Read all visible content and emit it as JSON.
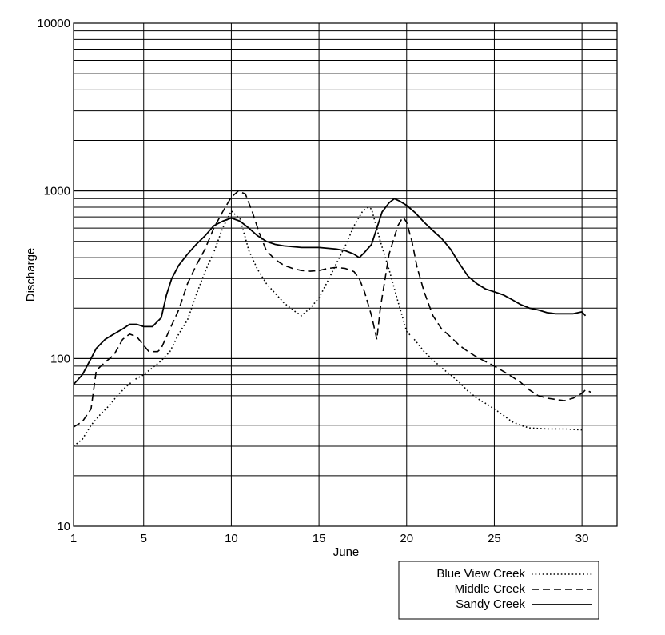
{
  "chart_data": {
    "type": "line",
    "title": "",
    "xlabel": "June",
    "ylabel": "Discharge",
    "xlim": [
      1,
      32
    ],
    "ylim": [
      10,
      10000
    ],
    "y_scale": "log",
    "grid": true,
    "x_ticks": [
      1,
      5,
      10,
      15,
      20,
      25,
      30
    ],
    "y_ticks": [
      10,
      100,
      1000,
      10000
    ],
    "legend_position": "bottom-right",
    "series": [
      {
        "name": "Blue View Creek",
        "style": "dotted",
        "points": [
          [
            1,
            30
          ],
          [
            1.5,
            33
          ],
          [
            2,
            40
          ],
          [
            2.5,
            46
          ],
          [
            3,
            52
          ],
          [
            3.5,
            60
          ],
          [
            4,
            68
          ],
          [
            4.5,
            75
          ],
          [
            5,
            80
          ],
          [
            5.5,
            88
          ],
          [
            6,
            97
          ],
          [
            6.5,
            110
          ],
          [
            7,
            140
          ],
          [
            7.5,
            170
          ],
          [
            8,
            240
          ],
          [
            8.5,
            330
          ],
          [
            9,
            430
          ],
          [
            9.5,
            600
          ],
          [
            10,
            760
          ],
          [
            10.5,
            680
          ],
          [
            11,
            440
          ],
          [
            11.5,
            340
          ],
          [
            12,
            280
          ],
          [
            12.5,
            245
          ],
          [
            13,
            215
          ],
          [
            13.5,
            195
          ],
          [
            14,
            180
          ],
          [
            14.5,
            200
          ],
          [
            15,
            230
          ],
          [
            15.5,
            290
          ],
          [
            16,
            370
          ],
          [
            16.5,
            470
          ],
          [
            17,
            620
          ],
          [
            17.5,
            760
          ],
          [
            17.8,
            800
          ],
          [
            18,
            780
          ],
          [
            18.5,
            500
          ],
          [
            19,
            340
          ],
          [
            19.5,
            220
          ],
          [
            20,
            145
          ],
          [
            20.5,
            128
          ],
          [
            21,
            110
          ],
          [
            21.5,
            98
          ],
          [
            22,
            88
          ],
          [
            22.5,
            80
          ],
          [
            23,
            72
          ],
          [
            23.5,
            64
          ],
          [
            24,
            58
          ],
          [
            24.5,
            54
          ],
          [
            25,
            50
          ],
          [
            25.5,
            46
          ],
          [
            26,
            42
          ],
          [
            26.5,
            40
          ],
          [
            27,
            38.5
          ],
          [
            28,
            38
          ],
          [
            29,
            38
          ],
          [
            30,
            37.5
          ]
        ]
      },
      {
        "name": "Middle Creek",
        "style": "dashed",
        "points": [
          [
            1,
            39
          ],
          [
            1.5,
            42
          ],
          [
            2,
            50
          ],
          [
            2.3,
            85
          ],
          [
            2.8,
            95
          ],
          [
            3.3,
            105
          ],
          [
            3.8,
            130
          ],
          [
            4.2,
            140
          ],
          [
            4.6,
            135
          ],
          [
            5,
            120
          ],
          [
            5.3,
            110
          ],
          [
            5.8,
            110
          ],
          [
            6,
            115
          ],
          [
            6.5,
            150
          ],
          [
            7,
            195
          ],
          [
            7.5,
            280
          ],
          [
            8,
            360
          ],
          [
            8.5,
            450
          ],
          [
            9,
            600
          ],
          [
            9.5,
            750
          ],
          [
            10,
            920
          ],
          [
            10.4,
            1000
          ],
          [
            10.8,
            960
          ],
          [
            11.2,
            750
          ],
          [
            11.6,
            560
          ],
          [
            12,
            440
          ],
          [
            12.5,
            390
          ],
          [
            13,
            360
          ],
          [
            13.5,
            345
          ],
          [
            14,
            335
          ],
          [
            14.5,
            332
          ],
          [
            15,
            335
          ],
          [
            15.5,
            345
          ],
          [
            16,
            350
          ],
          [
            16.5,
            345
          ],
          [
            17,
            330
          ],
          [
            17.3,
            300
          ],
          [
            17.6,
            250
          ],
          [
            18,
            180
          ],
          [
            18.3,
            130
          ],
          [
            18.5,
            200
          ],
          [
            19,
            420
          ],
          [
            19.5,
            620
          ],
          [
            19.8,
            700
          ],
          [
            20,
            650
          ],
          [
            20.3,
            500
          ],
          [
            20.6,
            350
          ],
          [
            21,
            250
          ],
          [
            21.5,
            180
          ],
          [
            22,
            150
          ],
          [
            22.5,
            135
          ],
          [
            23,
            120
          ],
          [
            23.5,
            110
          ],
          [
            24,
            102
          ],
          [
            24.5,
            96
          ],
          [
            25,
            90
          ],
          [
            25.5,
            84
          ],
          [
            26,
            78
          ],
          [
            26.5,
            72
          ],
          [
            27,
            65
          ],
          [
            27.5,
            60
          ],
          [
            28,
            58
          ],
          [
            28.5,
            57
          ],
          [
            29,
            56
          ],
          [
            29.5,
            58
          ],
          [
            30,
            62
          ],
          [
            30.2,
            65
          ],
          [
            30.5,
            63
          ]
        ]
      },
      {
        "name": "Sandy Creek",
        "style": "solid",
        "points": [
          [
            1,
            70
          ],
          [
            1.5,
            80
          ],
          [
            2,
            100
          ],
          [
            2.3,
            115
          ],
          [
            2.8,
            130
          ],
          [
            3.3,
            140
          ],
          [
            3.8,
            150
          ],
          [
            4.2,
            160
          ],
          [
            4.6,
            160
          ],
          [
            5,
            155
          ],
          [
            5.5,
            155
          ],
          [
            6,
            175
          ],
          [
            6.3,
            240
          ],
          [
            6.6,
            300
          ],
          [
            7,
            360
          ],
          [
            7.5,
            420
          ],
          [
            8,
            480
          ],
          [
            8.5,
            540
          ],
          [
            9,
            620
          ],
          [
            9.5,
            660
          ],
          [
            10,
            690
          ],
          [
            10.5,
            660
          ],
          [
            11,
            600
          ],
          [
            11.5,
            540
          ],
          [
            12,
            500
          ],
          [
            12.5,
            480
          ],
          [
            13,
            470
          ],
          [
            13.5,
            465
          ],
          [
            14,
            460
          ],
          [
            14.5,
            460
          ],
          [
            15,
            460
          ],
          [
            15.5,
            455
          ],
          [
            16,
            450
          ],
          [
            16.5,
            440
          ],
          [
            17,
            420
          ],
          [
            17.3,
            400
          ],
          [
            17.6,
            430
          ],
          [
            18,
            480
          ],
          [
            18.3,
            600
          ],
          [
            18.6,
            750
          ],
          [
            19,
            850
          ],
          [
            19.3,
            900
          ],
          [
            19.6,
            870
          ],
          [
            20,
            820
          ],
          [
            20.5,
            740
          ],
          [
            21,
            650
          ],
          [
            21.5,
            580
          ],
          [
            22,
            520
          ],
          [
            22.5,
            450
          ],
          [
            23,
            370
          ],
          [
            23.5,
            310
          ],
          [
            24,
            280
          ],
          [
            24.5,
            260
          ],
          [
            25,
            250
          ],
          [
            25.5,
            240
          ],
          [
            26,
            225
          ],
          [
            26.5,
            210
          ],
          [
            27,
            200
          ],
          [
            27.5,
            195
          ],
          [
            28,
            188
          ],
          [
            28.5,
            185
          ],
          [
            29,
            185
          ],
          [
            29.5,
            185
          ],
          [
            30,
            190
          ],
          [
            30.2,
            180
          ]
        ]
      }
    ]
  }
}
